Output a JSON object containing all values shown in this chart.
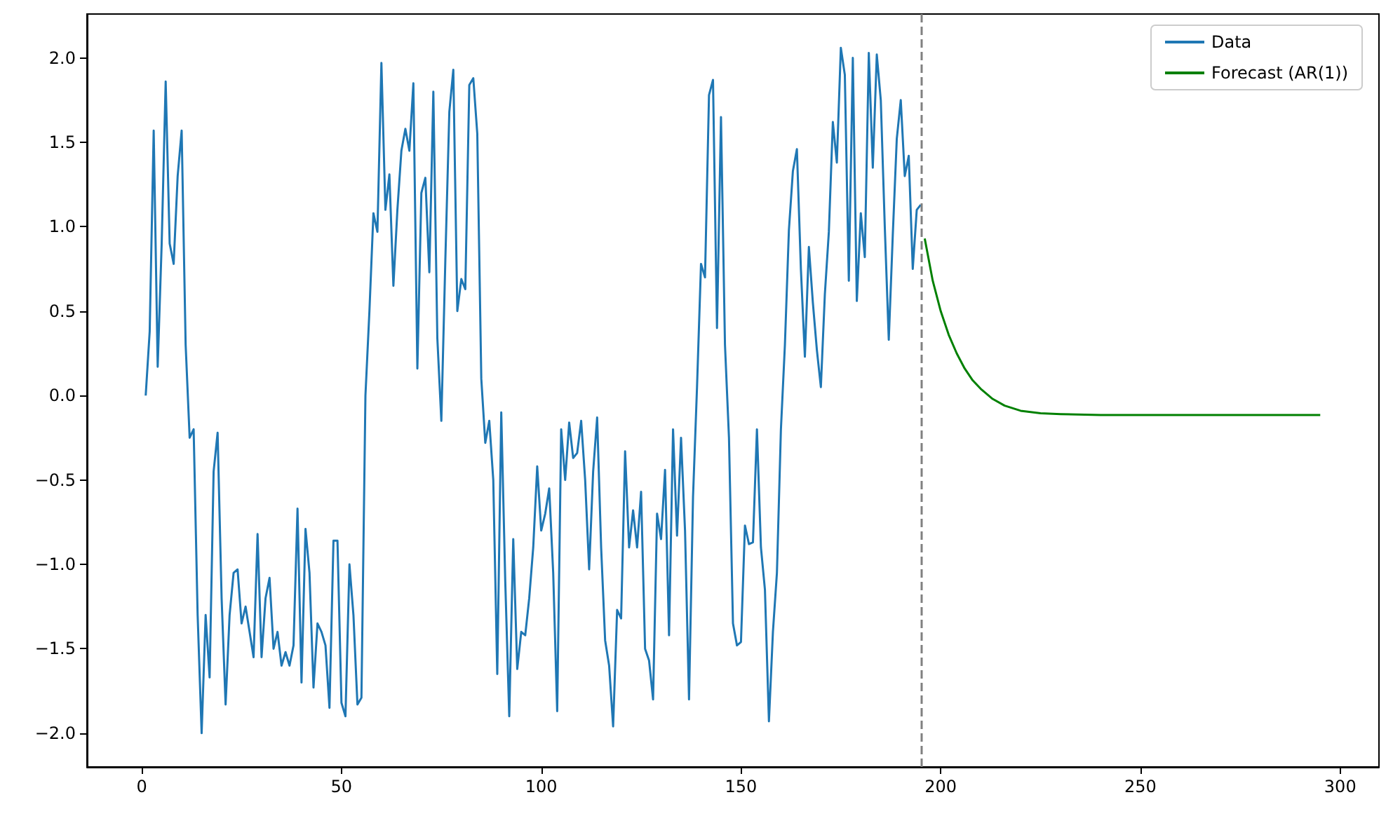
{
  "chart_data": {
    "type": "line",
    "xlim": [
      -13.7,
      309.7
    ],
    "xticks": [
      0,
      50,
      100,
      150,
      200,
      250,
      300
    ],
    "ylim": [
      -2.2,
      2.26
    ],
    "yticks": [
      {
        "value": -2,
        "label": "−2.0"
      },
      {
        "value": -1.5,
        "label": "−1.5"
      },
      {
        "value": -1,
        "label": "−1.0"
      },
      {
        "value": -0.5,
        "label": "−0.5"
      },
      {
        "value": 0,
        "label": "0.0"
      },
      {
        "value": 0.5,
        "label": "0.5"
      },
      {
        "value": 1,
        "label": "1.0"
      },
      {
        "value": 1.5,
        "label": "1.5"
      },
      {
        "value": 2,
        "label": "2.0"
      }
    ],
    "grid": false,
    "legend": "top right",
    "marker": "none",
    "series": [
      {
        "name": "Data",
        "color": "#1f77b4",
        "x": [
          1,
          2,
          3,
          4,
          5,
          6,
          7,
          8,
          9,
          10,
          11,
          12,
          13,
          14,
          15,
          16,
          17,
          18,
          19,
          20,
          21,
          22,
          23,
          24,
          25,
          26,
          27,
          28,
          29,
          30,
          31,
          32,
          33,
          34,
          35,
          36,
          37,
          38,
          39,
          40,
          41,
          42,
          43,
          44,
          45,
          46,
          47,
          48,
          49,
          50,
          51,
          52,
          53,
          54,
          55,
          56,
          57,
          58,
          59,
          60,
          61,
          62,
          63,
          64,
          65,
          66,
          67,
          68,
          69,
          70,
          71,
          72,
          73,
          74,
          75,
          76,
          77,
          78,
          79,
          80,
          81,
          82,
          83,
          84,
          85,
          86,
          87,
          88,
          89,
          90,
          91,
          92,
          93,
          94,
          95,
          96,
          97,
          98,
          99,
          100,
          101,
          102,
          103,
          104,
          105,
          106,
          107,
          108,
          109,
          110,
          111,
          112,
          113,
          114,
          115,
          116,
          117,
          118,
          119,
          120,
          121,
          122,
          123,
          124,
          125,
          126,
          127,
          128,
          129,
          130,
          131,
          132,
          133,
          134,
          135,
          136,
          137,
          138,
          139,
          140,
          141,
          142,
          143,
          144,
          145,
          146,
          147,
          148,
          149,
          150,
          151,
          152,
          153,
          154,
          155,
          156,
          157,
          158,
          159,
          160,
          161,
          162,
          163,
          164,
          165,
          166,
          167,
          168,
          169,
          170,
          171,
          172,
          173,
          174,
          175,
          176,
          177,
          178,
          179,
          180,
          181,
          182,
          183,
          184,
          185,
          186,
          187,
          188,
          189,
          190,
          191,
          192,
          193,
          194,
          195
        ],
        "values": [
          0.0,
          0.38,
          1.57,
          0.17,
          0.9,
          1.86,
          0.9,
          0.78,
          1.3,
          1.57,
          0.3,
          -0.25,
          -0.2,
          -1.3,
          -2.0,
          -1.3,
          -1.67,
          -0.45,
          -0.22,
          -1.2,
          -1.83,
          -1.3,
          -1.05,
          -1.03,
          -1.35,
          -1.25,
          -1.4,
          -1.55,
          -0.82,
          -1.55,
          -1.2,
          -1.08,
          -1.5,
          -1.4,
          -1.6,
          -1.52,
          -1.6,
          -1.48,
          -0.67,
          -1.7,
          -0.79,
          -1.05,
          -1.73,
          -1.35,
          -1.4,
          -1.48,
          -1.85,
          -0.86,
          -0.86,
          -1.82,
          -1.9,
          -1.0,
          -1.3,
          -1.83,
          -1.79,
          0.0,
          0.5,
          1.08,
          0.97,
          1.97,
          1.1,
          1.31,
          0.65,
          1.1,
          1.45,
          1.58,
          1.45,
          1.85,
          0.16,
          1.2,
          1.29,
          0.73,
          1.8,
          0.34,
          -0.15,
          0.8,
          1.68,
          1.93,
          0.5,
          0.69,
          0.63,
          1.84,
          1.88,
          1.55,
          0.1,
          -0.28,
          -0.15,
          -0.5,
          -1.65,
          -0.1,
          -1.1,
          -1.9,
          -0.85,
          -1.62,
          -1.4,
          -1.42,
          -1.2,
          -0.9,
          -0.42,
          -0.8,
          -0.7,
          -0.55,
          -1.05,
          -1.87,
          -0.2,
          -0.5,
          -0.16,
          -0.37,
          -0.34,
          -0.15,
          -0.5,
          -1.03,
          -0.45,
          -0.13,
          -0.9,
          -1.45,
          -1.6,
          -1.96,
          -1.27,
          -1.32,
          -0.33,
          -0.9,
          -0.68,
          -0.9,
          -0.57,
          -1.5,
          -1.57,
          -1.8,
          -0.7,
          -0.85,
          -0.44,
          -1.42,
          -0.2,
          -0.83,
          -0.25,
          -0.8,
          -1.8,
          -0.6,
          0.05,
          0.78,
          0.7,
          1.78,
          1.87,
          0.4,
          1.65,
          0.3,
          -0.25,
          -1.35,
          -1.48,
          -1.46,
          -0.77,
          -0.88,
          -0.87,
          -0.2,
          -0.9,
          -1.15,
          -1.93,
          -1.4,
          -1.05,
          -0.2,
          0.3,
          0.98,
          1.33,
          1.46,
          0.75,
          0.23,
          0.88,
          0.55,
          0.27,
          0.05,
          0.6,
          0.97,
          1.62,
          1.38,
          2.06,
          1.9,
          0.68,
          2.0,
          0.56,
          1.08,
          0.82,
          2.03,
          1.35,
          2.02,
          1.75,
          1.0,
          0.33,
          0.95,
          1.52,
          1.75,
          1.3,
          1.42,
          0.75,
          1.1,
          1.13
        ]
      },
      {
        "name": "Forecast (AR(1))",
        "color": "#008000",
        "x": [
          196,
          198,
          200,
          202,
          204,
          206,
          208,
          210,
          213,
          216,
          220,
          225,
          230,
          240,
          260,
          295
        ],
        "values": [
          0.93,
          0.68,
          0.5,
          0.36,
          0.25,
          0.16,
          0.09,
          0.04,
          -0.02,
          -0.06,
          -0.09,
          -0.105,
          -0.11,
          -0.115,
          -0.115,
          -0.115
        ]
      }
    ],
    "ref_lines": [
      {
        "axis": "x",
        "value": 195,
        "color": "#808080",
        "line_style": "dashed"
      }
    ]
  }
}
